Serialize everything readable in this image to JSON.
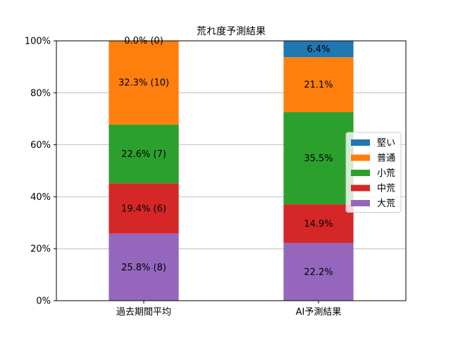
{
  "chart_data": {
    "type": "bar",
    "stacked": true,
    "title": "荒れ度予測結果",
    "xlabel": "",
    "ylabel": "",
    "ylim": [
      0,
      100
    ],
    "y_unit": "%",
    "grid": "horizontal",
    "legend_position": "right",
    "categories": [
      "過去期間平均",
      "AI予測結果"
    ],
    "y_ticks": [
      "0%",
      "20%",
      "40%",
      "60%",
      "80%",
      "100%"
    ],
    "series": [
      {
        "name": "大荒",
        "color": "#9467bd",
        "values": [
          25.8,
          22.2
        ],
        "labels": [
          "25.8% (8)",
          "22.2%"
        ]
      },
      {
        "name": "中荒",
        "color": "#d62728",
        "values": [
          19.4,
          14.9
        ],
        "labels": [
          "19.4% (6)",
          "14.9%"
        ]
      },
      {
        "name": "小荒",
        "color": "#2ca02c",
        "values": [
          22.6,
          35.5
        ],
        "labels": [
          "22.6% (7)",
          "35.5%"
        ]
      },
      {
        "name": "普通",
        "color": "#ff7f0e",
        "values": [
          32.3,
          21.1
        ],
        "labels": [
          "32.3% (10)",
          "21.1%"
        ]
      },
      {
        "name": "堅い",
        "color": "#1f77b4",
        "values": [
          0.0,
          6.4
        ],
        "labels": [
          "0.0% (0)",
          "6.4%"
        ]
      }
    ],
    "legend_order": [
      "堅い",
      "普通",
      "小荒",
      "中荒",
      "大荒"
    ]
  }
}
